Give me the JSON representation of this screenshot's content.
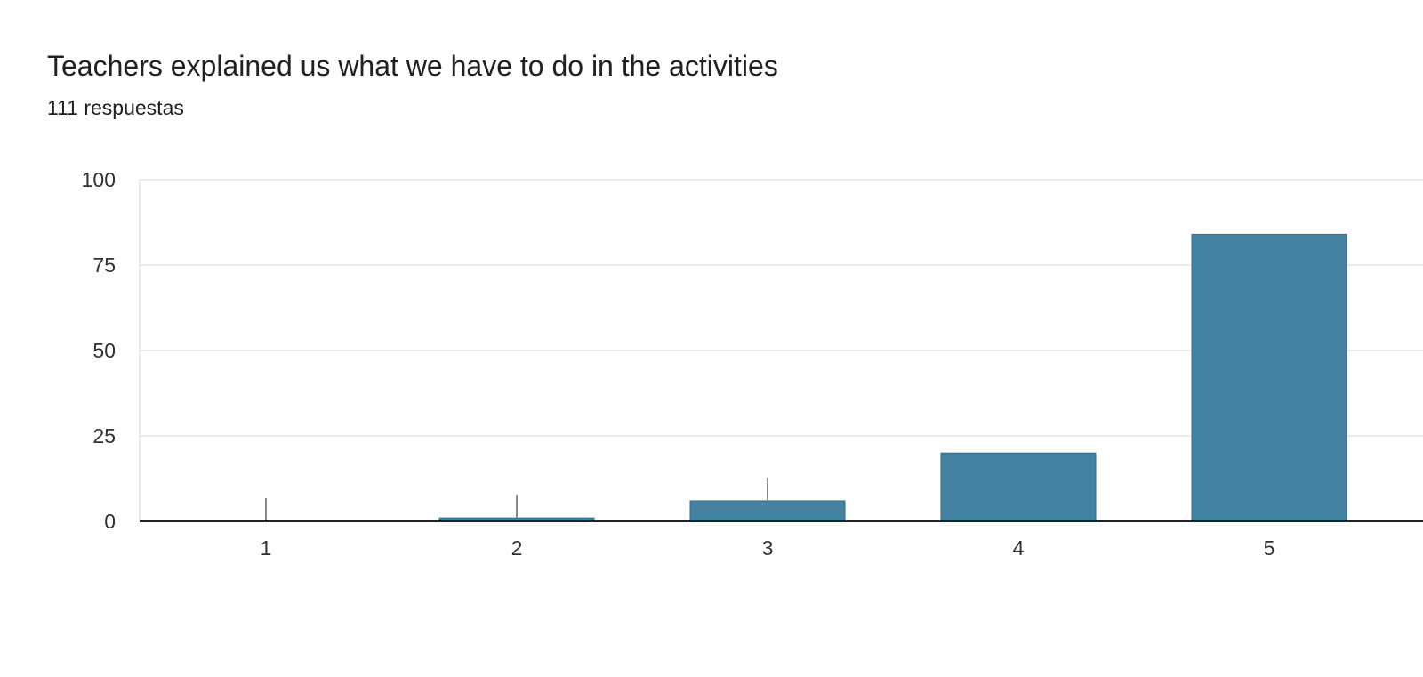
{
  "header": {
    "title": "Teachers explained us what we have to do in the activities",
    "response_count": "111 respuestas"
  },
  "chart_data": {
    "type": "bar",
    "title": "Teachers explained us what we have to do in the activities",
    "subtitle": "111 respuestas",
    "xlabel": "",
    "ylabel": "",
    "categories": [
      "1",
      "2",
      "3",
      "4",
      "5"
    ],
    "values": [
      0,
      1,
      6,
      20,
      84
    ],
    "ylim": [
      0,
      100
    ],
    "yticks": [
      0,
      25,
      50,
      75,
      100
    ],
    "grid": true,
    "legend": "none",
    "bar_color": "#4382a0",
    "bar_edge_color": "#2f6f8f",
    "gridline_color": "#ebebeb",
    "axis_color": "#202124"
  }
}
